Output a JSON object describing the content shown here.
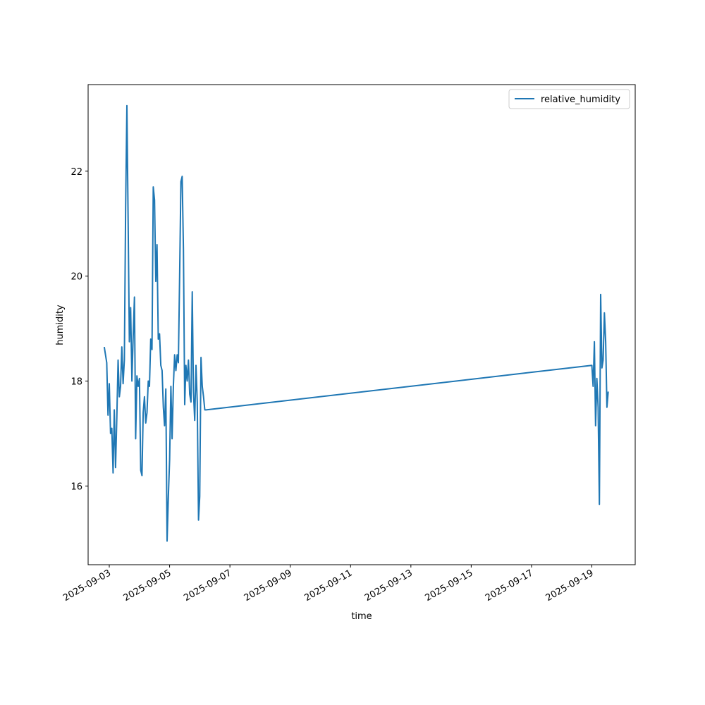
{
  "chart_data": {
    "type": "line",
    "title": "",
    "xlabel": "time",
    "ylabel": "humidity",
    "xlim": [
      "2025-09-02T07:10",
      "2025-09-20T10:30"
    ],
    "ylim": [
      14.5,
      23.65
    ],
    "grid": false,
    "legend_position": "top-right",
    "x_ticks": [
      "2025-09-03",
      "2025-09-05",
      "2025-09-07",
      "2025-09-09",
      "2025-09-11",
      "2025-09-13",
      "2025-09-15",
      "2025-09-17",
      "2025-09-19"
    ],
    "y_ticks": [
      16,
      18,
      20,
      22
    ],
    "series": [
      {
        "name": "relative_humidity",
        "color": "#1f77b4",
        "x": [
          "2025-09-02T20:00",
          "2025-09-02T22:00",
          "2025-09-02T23:00",
          "2025-09-03T00:00",
          "2025-09-03T01:00",
          "2025-09-03T02:00",
          "2025-09-03T03:00",
          "2025-09-03T04:00",
          "2025-09-03T05:00",
          "2025-09-03T06:00",
          "2025-09-03T07:00",
          "2025-09-03T08:00",
          "2025-09-03T09:00",
          "2025-09-03T10:00",
          "2025-09-03T11:00",
          "2025-09-03T12:00",
          "2025-09-03T13:00",
          "2025-09-03T14:00",
          "2025-09-03T15:00",
          "2025-09-03T16:00",
          "2025-09-03T17:00",
          "2025-09-03T18:00",
          "2025-09-03T19:00",
          "2025-09-03T20:00",
          "2025-09-03T21:00",
          "2025-09-03T22:00",
          "2025-09-03T23:00",
          "2025-09-04T00:00",
          "2025-09-04T01:00",
          "2025-09-04T02:00",
          "2025-09-04T03:00",
          "2025-09-04T04:00",
          "2025-09-04T05:00",
          "2025-09-04T06:00",
          "2025-09-04T07:00",
          "2025-09-04T08:00",
          "2025-09-04T09:00",
          "2025-09-04T10:00",
          "2025-09-04T11:00",
          "2025-09-04T12:00",
          "2025-09-04T13:00",
          "2025-09-04T14:00",
          "2025-09-04T15:00",
          "2025-09-04T16:00",
          "2025-09-04T17:00",
          "2025-09-04T18:00",
          "2025-09-04T19:00",
          "2025-09-04T20:00",
          "2025-09-04T21:00",
          "2025-09-04T22:00",
          "2025-09-04T23:00",
          "2025-09-05T00:00",
          "2025-09-05T01:00",
          "2025-09-05T02:00",
          "2025-09-05T03:00",
          "2025-09-05T04:00",
          "2025-09-05T05:00",
          "2025-09-05T06:00",
          "2025-09-05T07:00",
          "2025-09-05T08:00",
          "2025-09-05T09:00",
          "2025-09-05T10:00",
          "2025-09-05T11:00",
          "2025-09-05T12:00",
          "2025-09-05T13:00",
          "2025-09-05T14:00",
          "2025-09-05T15:00",
          "2025-09-05T16:00",
          "2025-09-05T17:00",
          "2025-09-05T18:00",
          "2025-09-05T19:00",
          "2025-09-05T20:00",
          "2025-09-05T21:00",
          "2025-09-05T22:00",
          "2025-09-05T23:00",
          "2025-09-06T00:00",
          "2025-09-06T01:00",
          "2025-09-06T02:00",
          "2025-09-06T03:00",
          "2025-09-06T04:00",
          "2025-09-06T05:00",
          "2025-09-19T00:00",
          "2025-09-19T01:00",
          "2025-09-19T02:00",
          "2025-09-19T03:00",
          "2025-09-19T04:00",
          "2025-09-19T05:00",
          "2025-09-19T06:00",
          "2025-09-19T07:00",
          "2025-09-19T08:00",
          "2025-09-19T09:00",
          "2025-09-19T10:00",
          "2025-09-19T11:00",
          "2025-09-19T12:00",
          "2025-09-19T13:00"
        ],
        "y": [
          18.65,
          18.35,
          17.35,
          17.95,
          17.0,
          17.1,
          16.25,
          17.45,
          16.35,
          17.3,
          18.4,
          17.7,
          17.9,
          18.65,
          17.95,
          18.4,
          21.3,
          23.25,
          21.1,
          18.75,
          19.4,
          18.0,
          18.85,
          19.6,
          16.9,
          18.1,
          17.9,
          18.05,
          16.3,
          16.2,
          17.4,
          17.7,
          17.2,
          17.4,
          18.0,
          17.9,
          18.8,
          18.6,
          21.7,
          21.45,
          19.9,
          20.6,
          18.8,
          18.9,
          18.3,
          18.2,
          17.5,
          17.15,
          17.85,
          14.95,
          15.8,
          16.5,
          17.9,
          16.9,
          17.9,
          18.5,
          18.2,
          18.5,
          18.35,
          20.0,
          21.8,
          21.9,
          20.5,
          17.55,
          18.3,
          18.0,
          18.4,
          17.75,
          17.6,
          19.7,
          17.8,
          17.25,
          18.3,
          17.6,
          15.35,
          15.8,
          18.45,
          17.9,
          17.7,
          17.45,
          17.45,
          18.3,
          17.9,
          18.75,
          17.15,
          18.05,
          17.5,
          15.65,
          19.65,
          18.25,
          18.4,
          19.3,
          18.75,
          17.5,
          17.8
        ]
      }
    ]
  }
}
